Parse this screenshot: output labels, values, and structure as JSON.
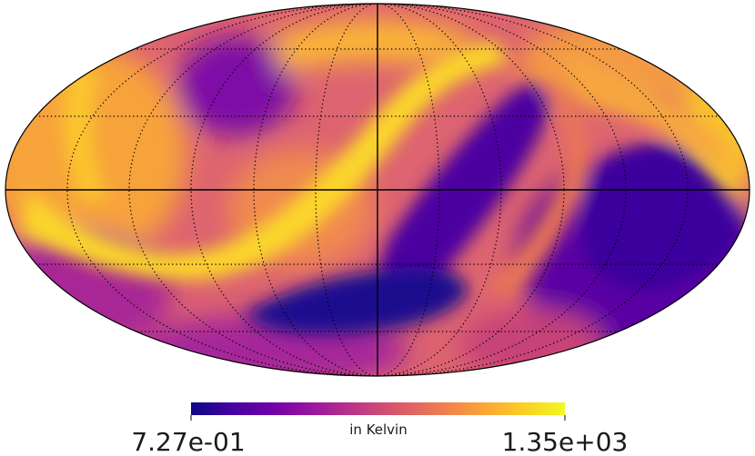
{
  "map": {
    "projection": "mollweide",
    "colormap": "plasma",
    "colormap_stops": [
      "#0d0887",
      "#46039f",
      "#7201a8",
      "#9c179e",
      "#bd3786",
      "#d8576b",
      "#ed7953",
      "#fb9f3a",
      "#fdca26",
      "#f0f921"
    ],
    "graticule": {
      "style": "dotted",
      "major_lines": "solid",
      "line_color": "#000000"
    }
  },
  "colorbar": {
    "min_label": "7.27e-01",
    "max_label": "1.35e+03",
    "unit_label": "in Kelvin"
  }
}
